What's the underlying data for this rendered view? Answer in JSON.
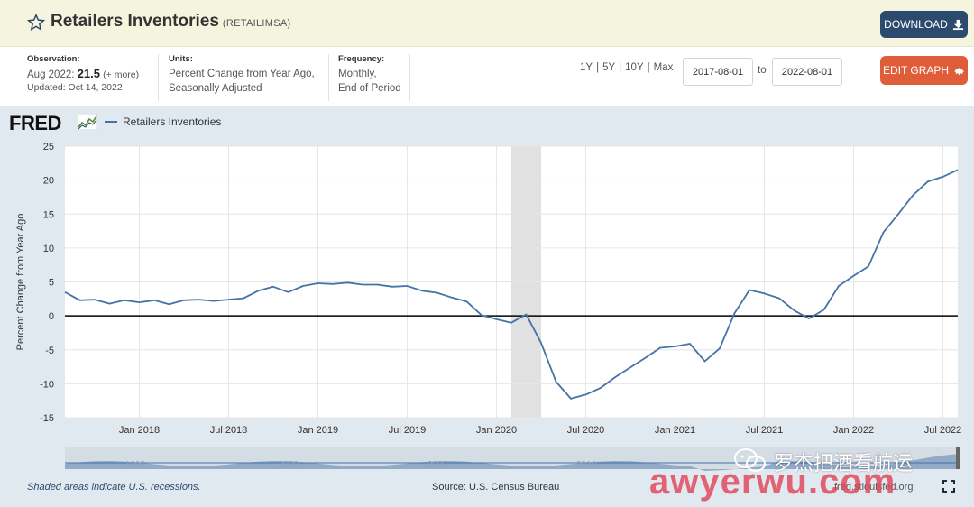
{
  "header": {
    "title": "Retailers Inventories",
    "series_id": "(RETAILIMSA)",
    "download_label": "DOWNLOAD"
  },
  "meta": {
    "observation_label": "Observation:",
    "observation_period": "Aug 2022:",
    "observation_value": "21.5",
    "observation_more": "(+ more)",
    "updated": "Updated: Oct 14, 2022",
    "units_label": "Units:",
    "units_line1": "Percent Change from Year Ago,",
    "units_line2": "Seasonally Adjusted",
    "frequency_label": "Frequency:",
    "frequency_line1": "Monthly,",
    "frequency_line2": "End of Period",
    "ranges": [
      "1Y",
      "5Y",
      "10Y",
      "Max"
    ],
    "range_separator": "|",
    "start_date": "2017-08-01",
    "to_label": "to",
    "end_date": "2022-08-01",
    "edit_graph_label": "EDIT GRAPH"
  },
  "graph": {
    "logo_text": "FRED",
    "recession_note": "Shaded areas indicate U.S. recessions.",
    "source_note": "Source: U.S. Census Bureau",
    "source_link": "fred.stlouisfed.org"
  },
  "navigator": {
    "labels": [
      "1995",
      "2000",
      "2005",
      "2010"
    ]
  },
  "watermark": {
    "cn_text": "罗杰把酒看航运",
    "en_text": "awyerwu.com"
  },
  "colors": {
    "series": "#4572a7",
    "recession": "#e1e1e1",
    "zero_line": "#000000",
    "download_btn": "#2c4a6e",
    "edit_btn": "#e05d3a"
  },
  "chart_data": {
    "type": "line",
    "title": "",
    "xlabel": "",
    "ylabel": "Percent Change from Year Ago",
    "ylim": [
      -15,
      25
    ],
    "yticks": [
      25,
      20,
      15,
      10,
      5,
      0,
      -5,
      -10,
      -15
    ],
    "xlim": [
      "2017-08",
      "2022-08"
    ],
    "xticks": [
      {
        "date": "2018-01",
        "label": "Jan 2018"
      },
      {
        "date": "2018-07",
        "label": "Jul 2018"
      },
      {
        "date": "2019-01",
        "label": "Jan 2019"
      },
      {
        "date": "2019-07",
        "label": "Jul 2019"
      },
      {
        "date": "2020-01",
        "label": "Jan 2020"
      },
      {
        "date": "2020-07",
        "label": "Jul 2020"
      },
      {
        "date": "2021-01",
        "label": "Jan 2021"
      },
      {
        "date": "2021-07",
        "label": "Jul 2021"
      },
      {
        "date": "2022-01",
        "label": "Jan 2022"
      },
      {
        "date": "2022-07",
        "label": "Jul 2022"
      }
    ],
    "recessions": [
      {
        "start": "2020-02",
        "end": "2020-04"
      }
    ],
    "grid": true,
    "legend": "top-left",
    "series": [
      {
        "name": "Retailers Inventories",
        "x": [
          "2017-08",
          "2017-09",
          "2017-10",
          "2017-11",
          "2017-12",
          "2018-01",
          "2018-02",
          "2018-03",
          "2018-04",
          "2018-05",
          "2018-06",
          "2018-07",
          "2018-08",
          "2018-09",
          "2018-10",
          "2018-11",
          "2018-12",
          "2019-01",
          "2019-02",
          "2019-03",
          "2019-04",
          "2019-05",
          "2019-06",
          "2019-07",
          "2019-08",
          "2019-09",
          "2019-10",
          "2019-11",
          "2019-12",
          "2020-01",
          "2020-02",
          "2020-03",
          "2020-04",
          "2020-05",
          "2020-06",
          "2020-07",
          "2020-08",
          "2020-09",
          "2020-10",
          "2020-11",
          "2020-12",
          "2021-01",
          "2021-02",
          "2021-03",
          "2021-04",
          "2021-05",
          "2021-06",
          "2021-07",
          "2021-08",
          "2021-09",
          "2021-10",
          "2021-11",
          "2021-12",
          "2022-01",
          "2022-02",
          "2022-03",
          "2022-04",
          "2022-05",
          "2022-06",
          "2022-07",
          "2022-08"
        ],
        "values": [
          3.5,
          2.3,
          2.4,
          1.8,
          2.3,
          2.0,
          2.3,
          1.7,
          2.3,
          2.4,
          2.2,
          2.4,
          2.6,
          3.7,
          4.3,
          3.5,
          4.4,
          4.8,
          4.7,
          4.9,
          4.6,
          4.6,
          4.3,
          4.4,
          3.7,
          3.4,
          2.7,
          2.1,
          0.1,
          -0.5,
          -1.0,
          0.2,
          -4.0,
          -9.7,
          -12.2,
          -11.6,
          -10.6,
          -9.0,
          -7.6,
          -6.2,
          -4.7,
          -4.5,
          -4.1,
          -6.7,
          -4.8,
          0.4,
          3.8,
          3.3,
          2.6,
          0.8,
          -0.4,
          0.9,
          4.4,
          5.9,
          7.3,
          12.3,
          15.0,
          17.8,
          19.8,
          20.5,
          21.5
        ]
      }
    ]
  }
}
